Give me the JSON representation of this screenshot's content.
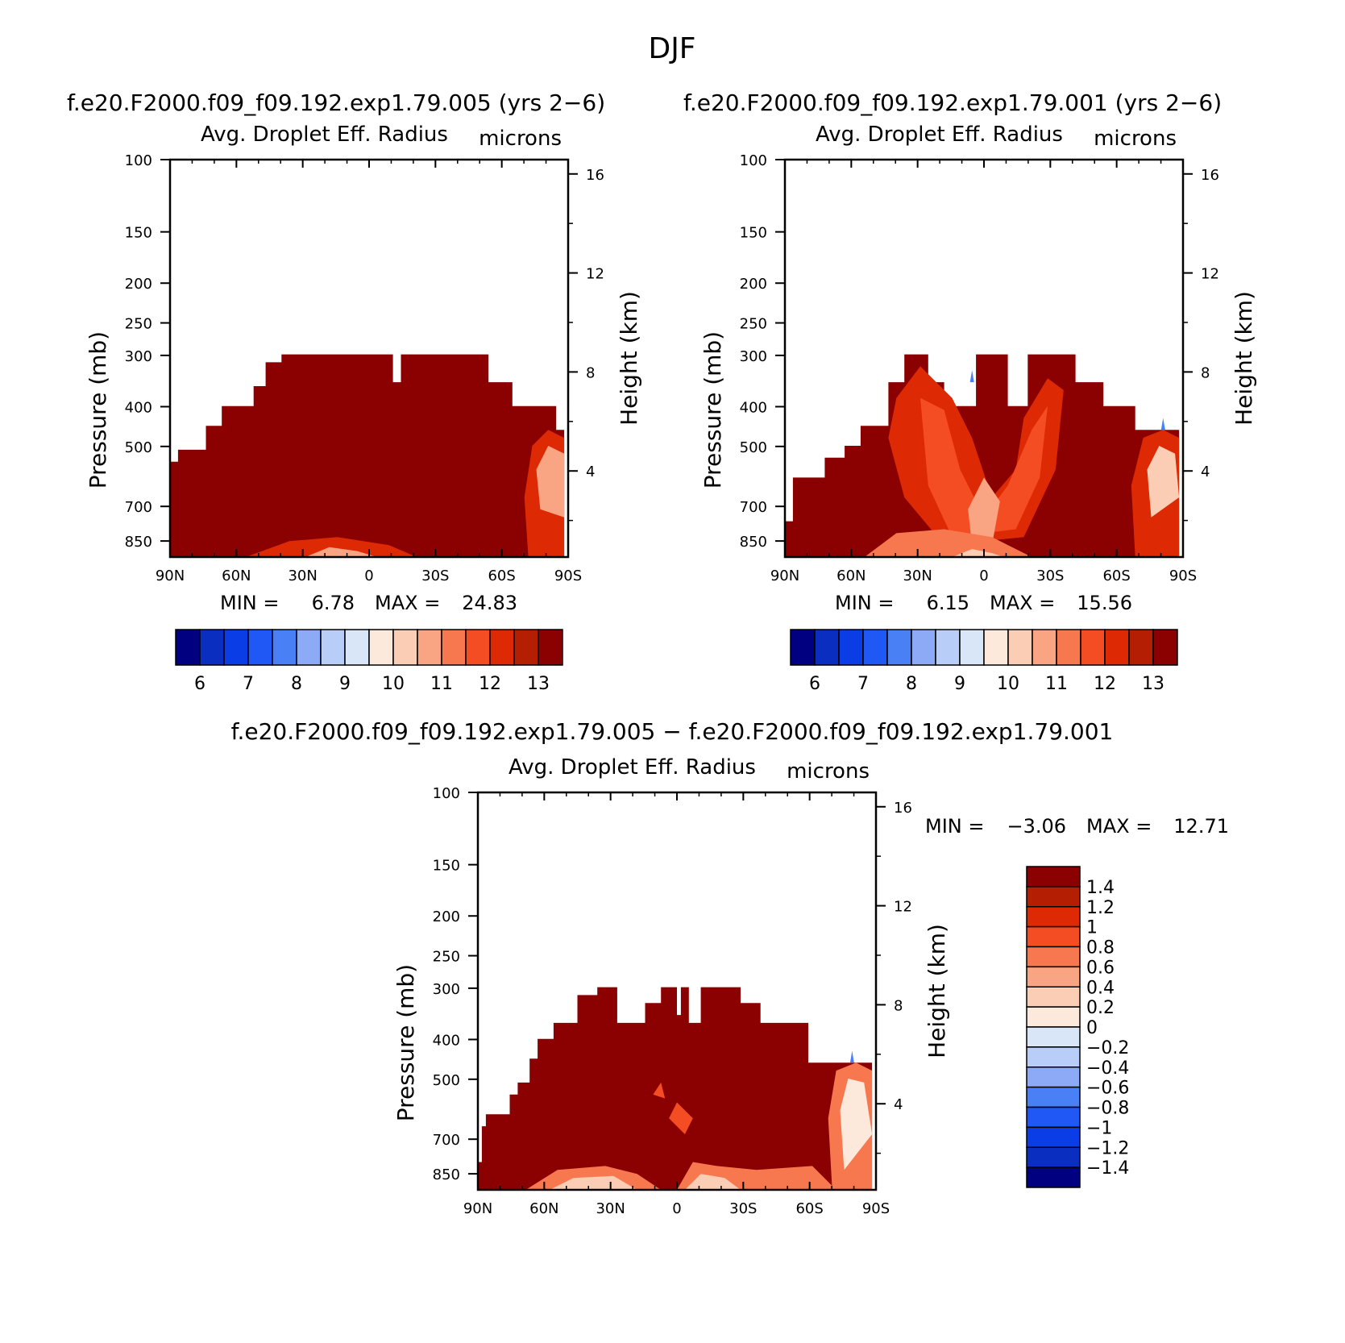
{
  "figure_title": "DJF",
  "chart_data": [
    {
      "type": "heatmap",
      "case": "f.e20.F2000.f09_f09.192.exp1.79.005 (yrs 2−6)",
      "title": "Avg. Droplet Eff. Radius",
      "units": "microns",
      "ylabel": "Pressure (mb)",
      "ylabel2": "Height (km)",
      "x_ticks": [
        "90N",
        "60N",
        "30N",
        "0",
        "30S",
        "60S",
        "90S"
      ],
      "y_ticks": [
        "100",
        "150",
        "200",
        "250",
        "300",
        "400",
        "500",
        "700",
        "850"
      ],
      "y2_ticks": [
        "16",
        "12",
        "8",
        "4"
      ],
      "ylim": [
        1000,
        100
      ],
      "min_label": "MIN =",
      "min": "6.78",
      "max_label": "MAX =",
      "max": "24.83",
      "colorbar_labels": [
        "6",
        "7",
        "8",
        "9",
        "10",
        "11",
        "12",
        "13"
      ]
    },
    {
      "type": "heatmap",
      "case": "f.e20.F2000.f09_f09.192.exp1.79.001 (yrs 2−6)",
      "title": "Avg. Droplet Eff. Radius",
      "units": "microns",
      "ylabel": "Pressure (mb)",
      "ylabel2": "Height (km)",
      "x_ticks": [
        "90N",
        "60N",
        "30N",
        "0",
        "30S",
        "60S",
        "90S"
      ],
      "y_ticks": [
        "100",
        "150",
        "200",
        "250",
        "300",
        "400",
        "500",
        "700",
        "850"
      ],
      "y2_ticks": [
        "16",
        "12",
        "8",
        "4"
      ],
      "ylim": [
        1000,
        100
      ],
      "min_label": "MIN =",
      "min": "6.15",
      "max_label": "MAX =",
      "max": "15.56",
      "colorbar_labels": [
        "6",
        "7",
        "8",
        "9",
        "10",
        "11",
        "12",
        "13"
      ]
    },
    {
      "type": "heatmap",
      "case": "f.e20.F2000.f09_f09.192.exp1.79.005 − f.e20.F2000.f09_f09.192.exp1.79.001",
      "title": "Avg. Droplet Eff. Radius",
      "units": "microns",
      "ylabel": "Pressure (mb)",
      "ylabel2": "Height (km)",
      "x_ticks": [
        "90N",
        "60N",
        "30N",
        "0",
        "30S",
        "60S",
        "90S"
      ],
      "y_ticks": [
        "100",
        "150",
        "200",
        "250",
        "300",
        "400",
        "500",
        "700",
        "850"
      ],
      "y2_ticks": [
        "16",
        "12",
        "8",
        "4"
      ],
      "ylim": [
        1000,
        100
      ],
      "min_label": "MIN =",
      "min": "−3.06",
      "max_label": "MAX =",
      "max": "12.71",
      "colorbar_labels": [
        "1.4",
        "1.2",
        "1",
        "0.8",
        "0.6",
        "0.4",
        "0.2",
        "0",
        "−0.2",
        "−0.4",
        "−0.6",
        "−0.8",
        "−1",
        "−1.2",
        "−1.4"
      ]
    }
  ],
  "colors": {
    "abs_scale": [
      "#000080",
      "#0a2fc0",
      "#0a3de6",
      "#1f58f5",
      "#4a80f5",
      "#8caaf5",
      "#b8cdf7",
      "#d8e6f8",
      "#fde9dc",
      "#fbcdb4",
      "#f9a583",
      "#f7784f",
      "#f44d23",
      "#dd2a05",
      "#b41e02",
      "#8b0000"
    ],
    "diff_scale": [
      "#8b0000",
      "#b41e02",
      "#dd2a05",
      "#f44d23",
      "#f7784f",
      "#f9a583",
      "#fbcdb4",
      "#fde9dc",
      "#d8e6f8",
      "#b8cdf7",
      "#8caaf5",
      "#4a80f5",
      "#1f58f5",
      "#0a3de6",
      "#0a2fc0",
      "#000080"
    ]
  }
}
